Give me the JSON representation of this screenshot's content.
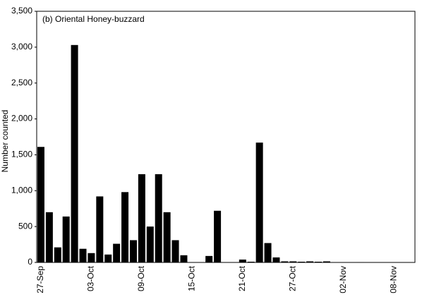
{
  "chart_data": {
    "type": "bar",
    "title": "(b) Oriental Honey-buzzard",
    "y_label": "Number counted",
    "categories": [
      "27-Sep",
      null,
      null,
      null,
      null,
      null,
      "03-Oct",
      null,
      null,
      null,
      null,
      null,
      "09-Oct",
      null,
      null,
      null,
      null,
      null,
      "15-Oct",
      null,
      null,
      null,
      null,
      null,
      "21-Oct",
      null,
      null,
      null,
      null,
      null,
      "27-Oct",
      null,
      null,
      null,
      null,
      null,
      "02-Nov",
      null,
      null,
      null,
      null,
      null,
      "08-Nov",
      null,
      null
    ],
    "values": [
      1610,
      700,
      210,
      640,
      3030,
      190,
      130,
      920,
      110,
      260,
      980,
      310,
      1230,
      500,
      1230,
      700,
      310,
      100,
      0,
      0,
      90,
      720,
      0,
      0,
      40,
      10,
      1670,
      270,
      70,
      15,
      15,
      10,
      15,
      10,
      15,
      0,
      0,
      0,
      5,
      0,
      0,
      0,
      0,
      0,
      0
    ],
    "color": "#000000",
    "ylim": [
      0,
      3500
    ],
    "yticks": [
      0,
      500,
      {
        "value": 1000,
        "label": "1,000"
      },
      {
        "value": 1500,
        "label": "1,500"
      },
      {
        "value": 2000,
        "label": "2,000"
      },
      {
        "value": 2500,
        "label": "2,500"
      },
      {
        "value": 3000,
        "label": "3,000"
      },
      {
        "value": 3500,
        "label": "3,500"
      }
    ],
    "grid": false
  }
}
